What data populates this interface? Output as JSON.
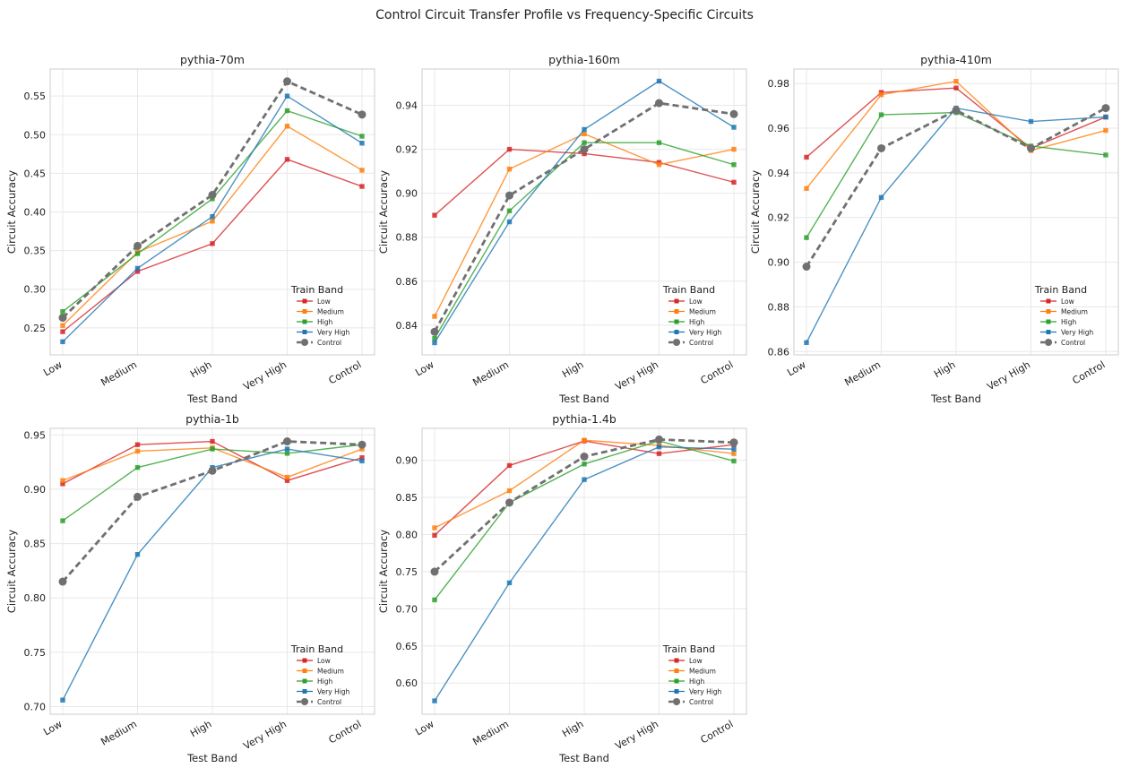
{
  "figure_title": "Control Circuit Transfer Profile vs Frequency-Specific Circuits",
  "colors": {
    "Low": "#d62728",
    "Medium": "#ff7f0e",
    "High": "#2ca02c",
    "Very High": "#1f77b4",
    "Control": "#707070",
    "grid": "#e8e8e8",
    "frame": "#cccccc",
    "text": "#222222"
  },
  "chart_data": [
    {
      "type": "line",
      "title": "pythia-70m",
      "xlabel": "Test Band",
      "ylabel": "Circuit Accuracy",
      "categories": [
        "Low",
        "Medium",
        "High",
        "Very High",
        "Control"
      ],
      "ylim": [
        0.215,
        0.585
      ],
      "yticks": [
        0.25,
        0.3,
        0.35,
        0.4,
        0.45,
        0.5,
        0.55
      ],
      "ytick_labels": [
        "0.25",
        "0.30",
        "0.35",
        "0.40",
        "0.45",
        "0.50",
        "0.55"
      ],
      "grid": true,
      "legend": {
        "title": "Train Band",
        "placement": "lower-right"
      },
      "series": [
        {
          "name": "Low",
          "values": [
            0.245,
            0.323,
            0.359,
            0.468,
            0.433
          ]
        },
        {
          "name": "Medium",
          "values": [
            0.253,
            0.348,
            0.388,
            0.511,
            0.454
          ]
        },
        {
          "name": "High",
          "values": [
            0.271,
            0.346,
            0.417,
            0.531,
            0.498
          ]
        },
        {
          "name": "Very High",
          "values": [
            0.232,
            0.327,
            0.394,
            0.55,
            0.489
          ]
        },
        {
          "name": "Control",
          "values": [
            0.263,
            0.356,
            0.422,
            0.569,
            0.526
          ]
        }
      ]
    },
    {
      "type": "line",
      "title": "pythia-160m",
      "xlabel": "Test Band",
      "ylabel": "Circuit Accuracy",
      "categories": [
        "Low",
        "Medium",
        "High",
        "Very High",
        "Control"
      ],
      "ylim": [
        0.8265,
        0.9565
      ],
      "yticks": [
        0.84,
        0.86,
        0.88,
        0.9,
        0.92,
        0.94
      ],
      "ytick_labels": [
        "0.84",
        "0.86",
        "0.88",
        "0.90",
        "0.92",
        "0.94"
      ],
      "grid": true,
      "legend": {
        "title": "Train Band",
        "placement": "lower-right"
      },
      "series": [
        {
          "name": "Low",
          "values": [
            0.89,
            0.92,
            0.918,
            0.914,
            0.905
          ]
        },
        {
          "name": "Medium",
          "values": [
            0.844,
            0.911,
            0.927,
            0.913,
            0.92
          ]
        },
        {
          "name": "High",
          "values": [
            0.834,
            0.892,
            0.923,
            0.923,
            0.913
          ]
        },
        {
          "name": "Very High",
          "values": [
            0.832,
            0.887,
            0.929,
            0.951,
            0.93
          ]
        },
        {
          "name": "Control",
          "values": [
            0.837,
            0.899,
            0.92,
            0.941,
            0.936
          ]
        }
      ]
    },
    {
      "type": "line",
      "title": "pythia-410m",
      "xlabel": "Test Band",
      "ylabel": "Circuit Accuracy",
      "categories": [
        "Low",
        "Medium",
        "High",
        "Very High",
        "Control"
      ],
      "ylim": [
        0.8585,
        0.9865
      ],
      "yticks": [
        0.86,
        0.88,
        0.9,
        0.92,
        0.94,
        0.96,
        0.98
      ],
      "ytick_labels": [
        "0.86",
        "0.88",
        "0.90",
        "0.92",
        "0.94",
        "0.96",
        "0.98"
      ],
      "grid": true,
      "legend": {
        "title": "Train Band",
        "placement": "lower-right"
      },
      "series": [
        {
          "name": "Low",
          "values": [
            0.947,
            0.976,
            0.978,
            0.951,
            0.965
          ]
        },
        {
          "name": "Medium",
          "values": [
            0.933,
            0.975,
            0.981,
            0.95,
            0.959
          ]
        },
        {
          "name": "High",
          "values": [
            0.911,
            0.966,
            0.967,
            0.952,
            0.948
          ]
        },
        {
          "name": "Very High",
          "values": [
            0.864,
            0.929,
            0.969,
            0.963,
            0.965
          ]
        },
        {
          "name": "Control",
          "values": [
            0.898,
            0.951,
            0.968,
            0.951,
            0.969
          ]
        }
      ]
    },
    {
      "type": "line",
      "title": "pythia-1b",
      "xlabel": "Test Band",
      "ylabel": "Circuit Accuracy",
      "categories": [
        "Low",
        "Medium",
        "High",
        "Very High",
        "Control"
      ],
      "ylim": [
        0.693,
        0.956
      ],
      "yticks": [
        0.7,
        0.75,
        0.8,
        0.85,
        0.9,
        0.95
      ],
      "ytick_labels": [
        "0.70",
        "0.75",
        "0.80",
        "0.85",
        "0.90",
        "0.95"
      ],
      "grid": true,
      "legend": {
        "title": "Train Band",
        "placement": "lower-right"
      },
      "series": [
        {
          "name": "Low",
          "values": [
            0.905,
            0.941,
            0.944,
            0.908,
            0.929
          ]
        },
        {
          "name": "Medium",
          "values": [
            0.908,
            0.935,
            0.938,
            0.911,
            0.937
          ]
        },
        {
          "name": "High",
          "values": [
            0.871,
            0.92,
            0.937,
            0.933,
            0.941
          ]
        },
        {
          "name": "Very High",
          "values": [
            0.706,
            0.84,
            0.92,
            0.937,
            0.926
          ]
        },
        {
          "name": "Control",
          "values": [
            0.815,
            0.893,
            0.917,
            0.944,
            0.941
          ]
        }
      ]
    },
    {
      "type": "line",
      "title": "pythia-1.4b",
      "xlabel": "Test Band",
      "ylabel": "Circuit Accuracy",
      "categories": [
        "Low",
        "Medium",
        "High",
        "Very High",
        "Control"
      ],
      "ylim": [
        0.558,
        0.943
      ],
      "yticks": [
        0.6,
        0.65,
        0.7,
        0.75,
        0.8,
        0.85,
        0.9
      ],
      "ytick_labels": [
        "0.60",
        "0.65",
        "0.70",
        "0.75",
        "0.80",
        "0.85",
        "0.90"
      ],
      "grid": true,
      "legend": {
        "title": "Train Band",
        "placement": "lower-right"
      },
      "series": [
        {
          "name": "Low",
          "values": [
            0.799,
            0.893,
            0.926,
            0.909,
            0.921
          ]
        },
        {
          "name": "Medium",
          "values": [
            0.809,
            0.859,
            0.927,
            0.92,
            0.909
          ]
        },
        {
          "name": "High",
          "values": [
            0.712,
            0.843,
            0.895,
            0.926,
            0.899
          ]
        },
        {
          "name": "Very High",
          "values": [
            0.576,
            0.735,
            0.874,
            0.918,
            0.915
          ]
        },
        {
          "name": "Control",
          "values": [
            0.75,
            0.843,
            0.905,
            0.928,
            0.924
          ]
        }
      ]
    }
  ]
}
